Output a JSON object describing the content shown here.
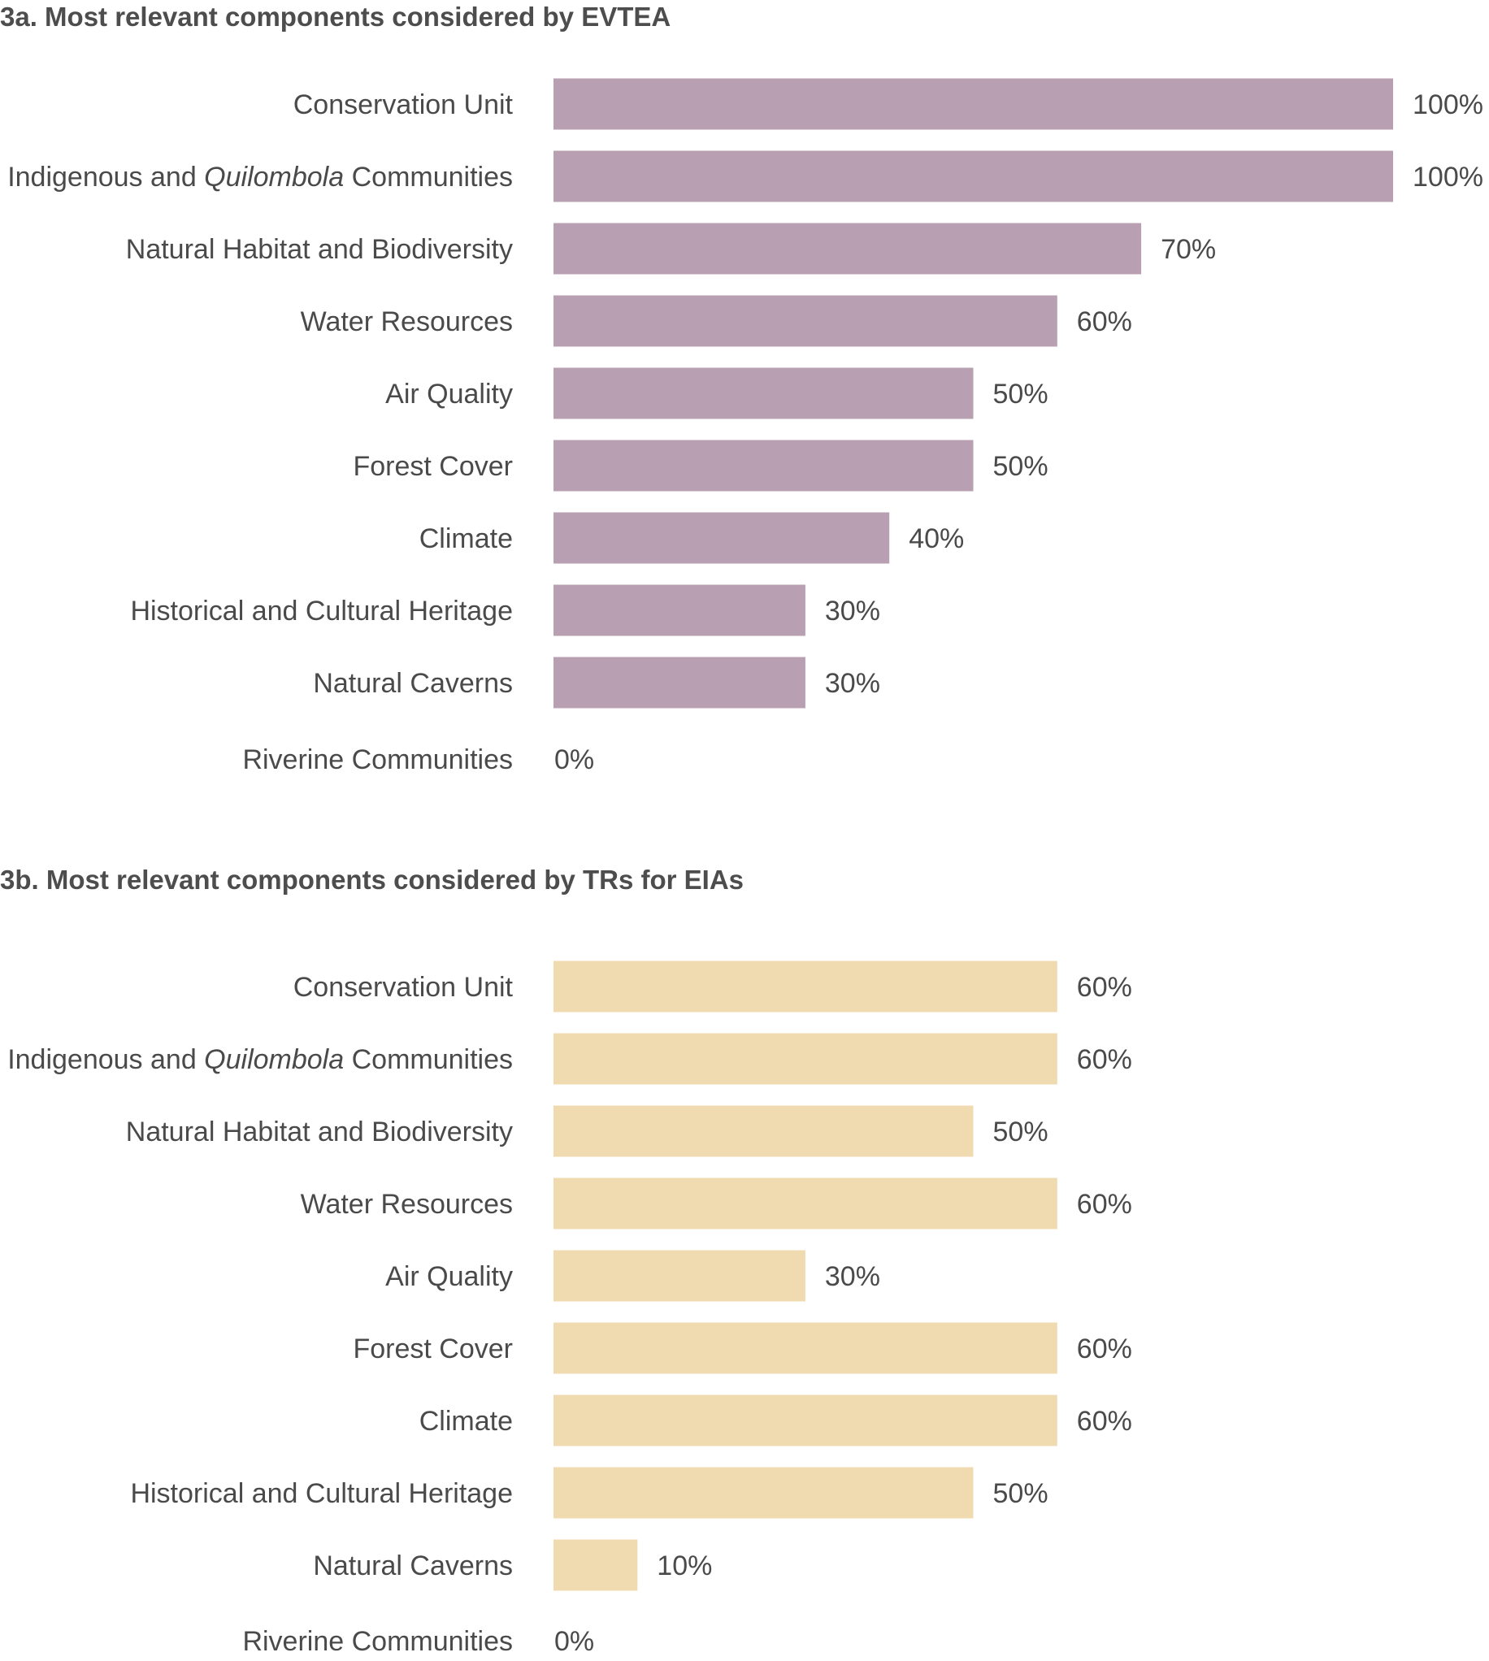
{
  "chart_data": [
    {
      "type": "bar",
      "orientation": "horizontal",
      "title": "3a. Most relevant components considered by EVTEA",
      "categories": [
        [
          "Conservation Unit"
        ],
        [
          "Indigenous and ",
          "Quilombola",
          " Communities"
        ],
        [
          "Natural Habitat and Biodiversity"
        ],
        [
          "Water Resources"
        ],
        [
          "Air Quality"
        ],
        [
          "Forest Cover"
        ],
        [
          "Climate"
        ],
        [
          "Historical and Cultural Heritage"
        ],
        [
          "Natural Caverns"
        ],
        [
          "Riverine Communities"
        ]
      ],
      "values": [
        100,
        100,
        70,
        60,
        50,
        50,
        40,
        30,
        30,
        0
      ],
      "value_labels": [
        "100%",
        "100%",
        "70%",
        "60%",
        "50%",
        "50%",
        "40%",
        "30%",
        "30%",
        "0%"
      ],
      "xlim": [
        0,
        100
      ],
      "unit": "%",
      "color": "#b8a0b2",
      "grid": false,
      "legend": "none"
    },
    {
      "type": "bar",
      "orientation": "horizontal",
      "title": "3b. Most relevant components considered by TRs for EIAs",
      "categories": [
        [
          "Conservation Unit"
        ],
        [
          "Indigenous and ",
          "Quilombola",
          " Communities"
        ],
        [
          "Natural Habitat and Biodiversity"
        ],
        [
          "Water Resources"
        ],
        [
          "Air Quality"
        ],
        [
          "Forest Cover"
        ],
        [
          "Climate"
        ],
        [
          "Historical and Cultural Heritage"
        ],
        [
          "Natural Caverns"
        ],
        [
          "Riverine Communities"
        ]
      ],
      "values": [
        60,
        60,
        50,
        60,
        30,
        60,
        60,
        50,
        10,
        0
      ],
      "value_labels": [
        "60%",
        "60%",
        "50%",
        "60%",
        "30%",
        "60%",
        "60%",
        "50%",
        "10%",
        "0%"
      ],
      "xlim": [
        0,
        100
      ],
      "unit": "%",
      "color": "#f0dbb0",
      "grid": false,
      "legend": "none"
    }
  ]
}
